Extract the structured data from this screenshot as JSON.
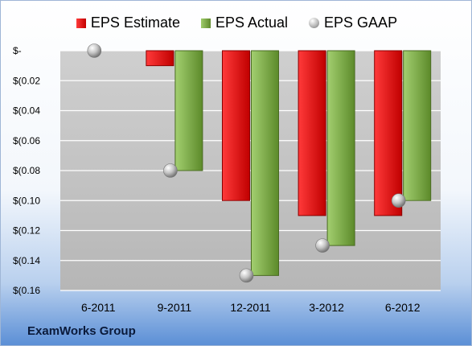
{
  "colors": {
    "estimate": "#e01010",
    "actual": "#7aa33f",
    "gaap": "#a0a0a0"
  },
  "legend": {
    "estimate": "EPS Estimate",
    "actual": "EPS Actual",
    "gaap": "EPS GAAP"
  },
  "footer": {
    "company": "ExamWorks Group"
  },
  "chart_data": {
    "type": "bar",
    "title": "",
    "xlabel": "",
    "ylabel": "",
    "ylim": [
      -0.16,
      0
    ],
    "yticks": [
      0,
      -0.02,
      -0.04,
      -0.06,
      -0.08,
      -0.1,
      -0.12,
      -0.14,
      -0.16
    ],
    "ytick_labels": [
      "$-",
      "$(0.02",
      "$(0.04",
      "$(0.06",
      "$(0.08",
      "$(0.10",
      "$(0.12",
      "$(0.14",
      "$(0.16"
    ],
    "categories": [
      "6-2011",
      "9-2011",
      "12-2011",
      "3-2012",
      "6-2012"
    ],
    "series": [
      {
        "name": "EPS Estimate",
        "kind": "bar",
        "values": [
          null,
          -0.01,
          -0.1,
          -0.11,
          -0.11
        ]
      },
      {
        "name": "EPS Actual",
        "kind": "bar",
        "values": [
          null,
          -0.08,
          -0.15,
          -0.13,
          -0.1
        ]
      },
      {
        "name": "EPS GAAP",
        "kind": "marker",
        "values": [
          0,
          -0.08,
          -0.15,
          -0.13,
          -0.1
        ]
      }
    ],
    "grid": true,
    "legend_position": "top"
  }
}
